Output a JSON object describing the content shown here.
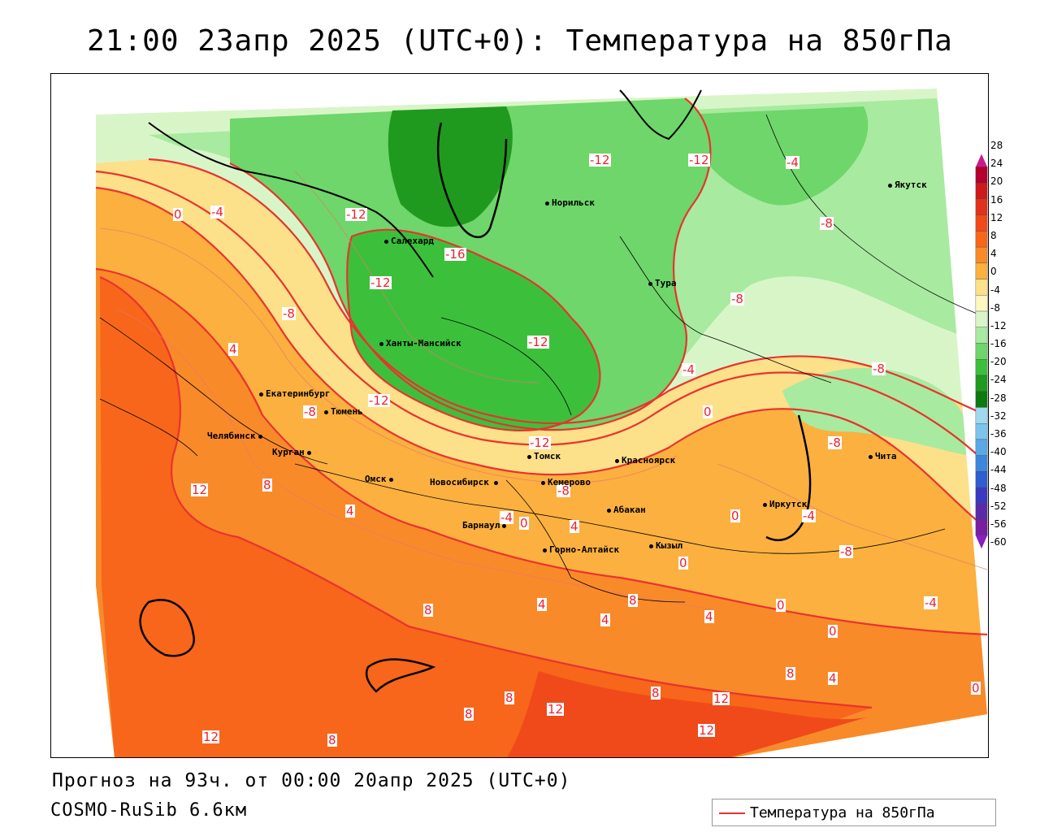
{
  "title": "21:00 23апр 2025 (UTC+0): Температура на 850гПа",
  "forecast_line": "Прогноз на 93ч. от 00:00 20апр 2025 (UTC+0)",
  "model_line": "COSMO-RuSib 6.6км",
  "legend_label": "Температура на 850гПа",
  "legend_color": "#e8332f",
  "colorbar": {
    "ticks": [
      "28",
      "24",
      "20",
      "16",
      "12",
      "8",
      "4",
      "0",
      "-4",
      "-8",
      "-12",
      "-16",
      "-20",
      "-24",
      "-28",
      "-32",
      "-36",
      "-40",
      "-44",
      "-48",
      "-52",
      "-56",
      "-60"
    ],
    "colors": [
      "#b3002e",
      "#cc1a1a",
      "#e0321a",
      "#f04a1a",
      "#f7661a",
      "#f98a2a",
      "#fbb040",
      "#fde08a",
      "#fff7c0",
      "#d8f5c8",
      "#a8eaa0",
      "#6ed66a",
      "#3cc03c",
      "#1f9a1f",
      "#0d7a0d",
      "#a0d8f0",
      "#7cc4ec",
      "#5aa8e6",
      "#3c86dc",
      "#2e5ed0",
      "#3a3ac0",
      "#5a2aa8",
      "#7a1ea0"
    ]
  },
  "cities": [
    {
      "name": "Якутск"
    },
    {
      "name": "Норильск"
    },
    {
      "name": "Салехард"
    },
    {
      "name": "Тура"
    },
    {
      "name": "Ханты-Мансийск"
    },
    {
      "name": "Екатеринбург"
    },
    {
      "name": "Тюмень"
    },
    {
      "name": "Челябинск"
    },
    {
      "name": "Курган"
    },
    {
      "name": "Томск"
    },
    {
      "name": "Красноярск"
    },
    {
      "name": "Омск"
    },
    {
      "name": "Новосибирск"
    },
    {
      "name": "Кемерово"
    },
    {
      "name": "Абакан"
    },
    {
      "name": "Иркутск"
    },
    {
      "name": "Барнаул"
    },
    {
      "name": "Горно-Алтайск"
    },
    {
      "name": "Кызыл"
    },
    {
      "name": "Чита"
    }
  ],
  "contour_labels": [
    "-12",
    "-12",
    "-4",
    "-4",
    "0",
    "-12",
    "-8",
    "-16",
    "-12",
    "-8",
    "-8",
    "-8",
    "-12",
    "4",
    "-4",
    "-12",
    "-8",
    "0",
    "-12",
    "-8",
    "12",
    "8",
    "-8",
    "0",
    "4",
    "-4",
    "-4",
    "0",
    "4",
    "-8",
    "0",
    "4",
    "-4",
    "8",
    "8",
    "4",
    "4",
    "0",
    "0",
    "8",
    "8",
    "4",
    "12",
    "12",
    "8",
    "8",
    "12",
    "12",
    "8",
    "0"
  ]
}
